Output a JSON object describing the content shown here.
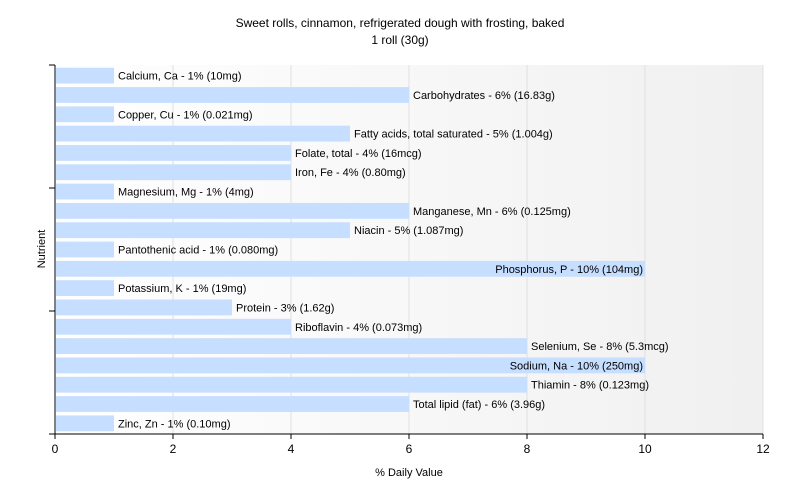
{
  "chart_data": {
    "type": "bar",
    "orientation": "horizontal",
    "title": "Sweet rolls, cinnamon, refrigerated dough with frosting, baked",
    "subtitle": "1 roll (30g)",
    "xlabel": "% Daily Value",
    "ylabel": "Nutrient",
    "xlim": [
      0,
      12
    ],
    "xticks": [
      "0",
      "2",
      "4",
      "6",
      "8",
      "10",
      "12"
    ],
    "grid": true,
    "bar_color": "#c6deff",
    "categories": [
      "Calcium, Ca",
      "Carbohydrates",
      "Copper, Cu",
      "Fatty acids, total saturated",
      "Folate, total",
      "Iron, Fe",
      "Magnesium, Mg",
      "Manganese, Mn",
      "Niacin",
      "Pantothenic acid",
      "Phosphorus, P",
      "Potassium, K",
      "Protein",
      "Riboflavin",
      "Selenium, Se",
      "Sodium, Na",
      "Thiamin",
      "Total lipid (fat)",
      "Zinc, Zn"
    ],
    "values": [
      1,
      6,
      1,
      5,
      4,
      4,
      1,
      6,
      5,
      1,
      10,
      1,
      3,
      4,
      8,
      10,
      8,
      6,
      1
    ],
    "labels": [
      "Calcium, Ca - 1% (10mg)",
      "Carbohydrates - 6% (16.83g)",
      "Copper, Cu - 1% (0.021mg)",
      "Fatty acids, total saturated - 5% (1.004g)",
      "Folate, total - 4% (16mcg)",
      "Iron, Fe - 4% (0.80mg)",
      "Magnesium, Mg - 1% (4mg)",
      "Manganese, Mn - 6% (0.125mg)",
      "Niacin - 5% (1.087mg)",
      "Pantothenic acid - 1% (0.080mg)",
      "Phosphorus, P - 10% (104mg)",
      "Potassium, K - 1% (19mg)",
      "Protein - 3% (1.62g)",
      "Riboflavin - 4% (0.073mg)",
      "Selenium, Se - 8% (5.3mcg)",
      "Sodium, Na - 10% (250mg)",
      "Thiamin - 8% (0.123mg)",
      "Total lipid (fat) - 6% (3.96g)",
      "Zinc, Zn - 1% (0.10mg)"
    ]
  }
}
